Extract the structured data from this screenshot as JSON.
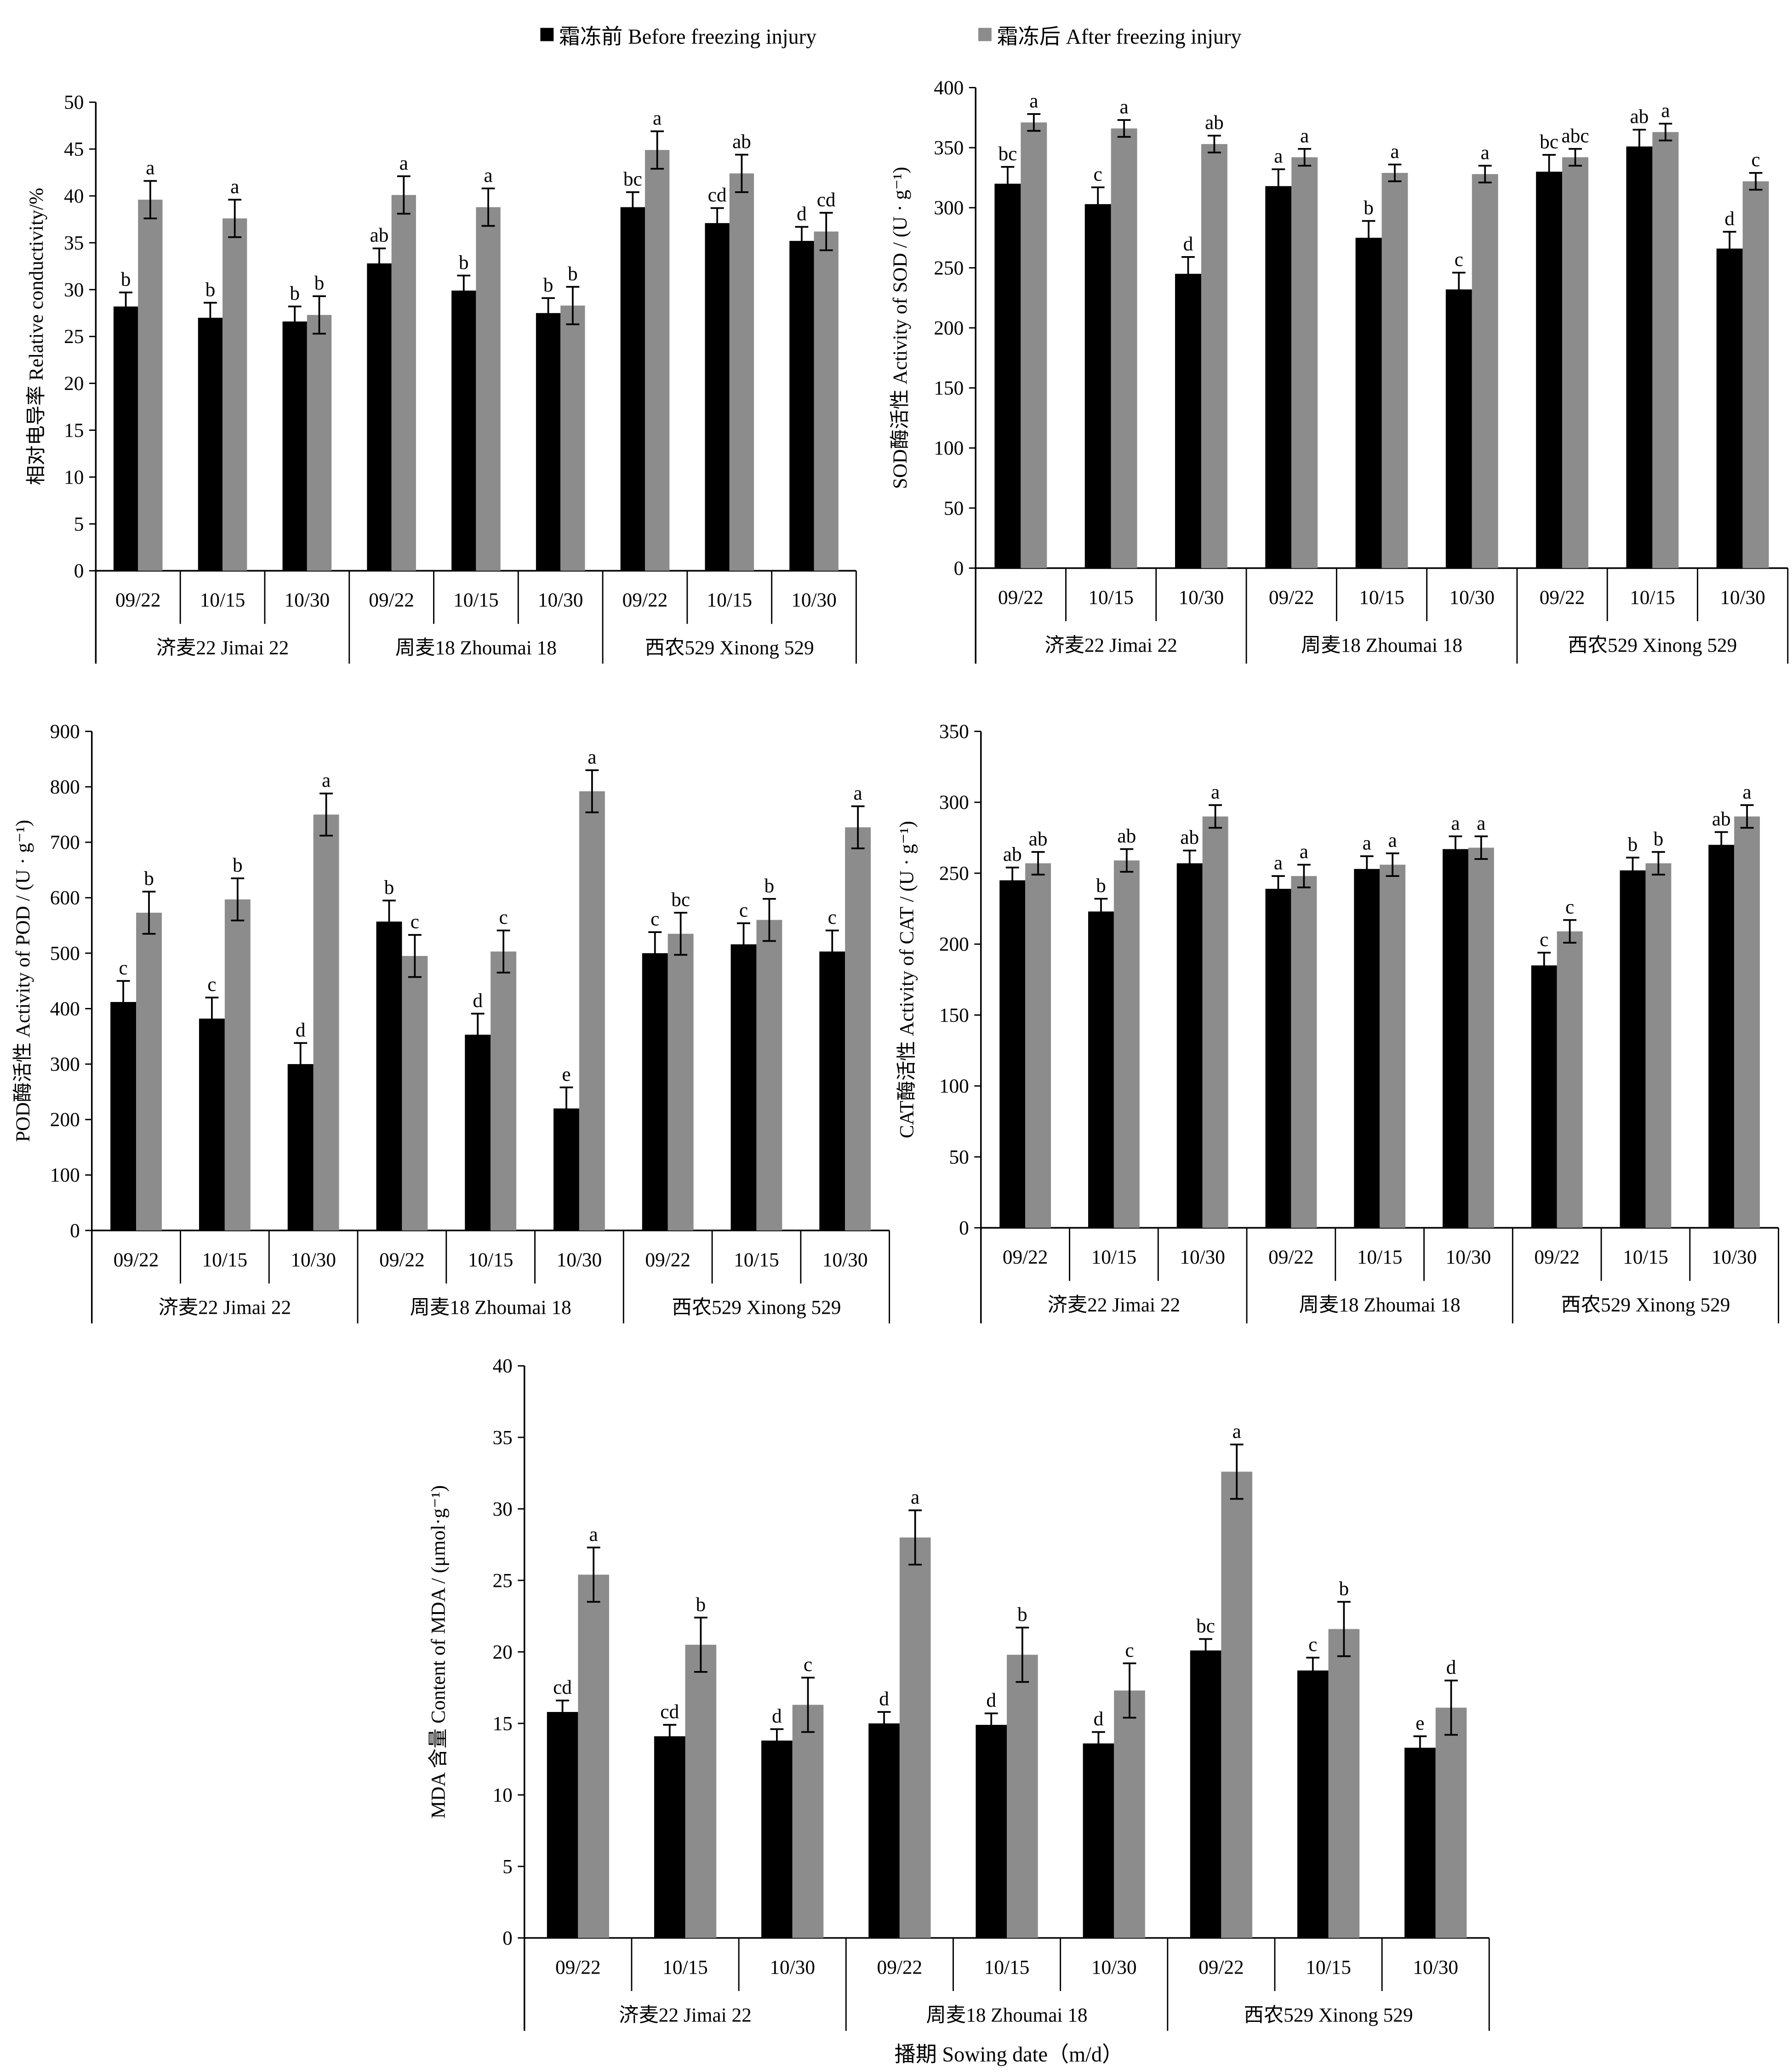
{
  "legend": {
    "before": "霜冻前 Before freezing injury",
    "after": "霜冻后 After freezing injury",
    "before_color": "#000000",
    "after_color": "#8c8c8c"
  },
  "x_title": "播期 Sowing date（m/d）",
  "chart_data": [
    {
      "type": "bar",
      "ylabel": "相对电导率 Relative conductivity/%",
      "ylim": [
        0,
        50
      ],
      "ystep": 5,
      "groups": [
        "济麦22 Jimai 22",
        "周麦18 Zhoumai 18",
        "西农529 Xinong 529"
      ],
      "categories": [
        "09/22",
        "10/15",
        "10/30",
        "09/22",
        "10/15",
        "10/30",
        "09/22",
        "10/15",
        "10/30"
      ],
      "series": [
        {
          "name": "Before freezing injury",
          "values": [
            28.2,
            27.0,
            26.6,
            32.8,
            29.9,
            27.5,
            38.8,
            37.1,
            35.2
          ],
          "errors": [
            1.5,
            1.6,
            1.6,
            1.6,
            1.6,
            1.6,
            1.6,
            1.6,
            1.5
          ],
          "letters": [
            "b",
            "b",
            "b",
            "ab",
            "b",
            "b",
            "bc",
            "cd",
            "d"
          ]
        },
        {
          "name": "After freezing injury",
          "values": [
            39.6,
            37.6,
            27.3,
            40.1,
            38.8,
            28.3,
            44.9,
            42.4,
            36.2
          ],
          "errors": [
            2.0,
            2.0,
            2.0,
            2.0,
            2.0,
            2.0,
            2.0,
            2.0,
            2.0
          ],
          "letters": [
            "a",
            "a",
            "b",
            "a",
            "a",
            "b",
            "a",
            "ab",
            "cd"
          ]
        }
      ]
    },
    {
      "type": "bar",
      "ylabel": "SOD酶活性  Activity of SOD / (U · g⁻¹)",
      "ylim": [
        0,
        400
      ],
      "ystep": 50,
      "groups": [
        "济麦22 Jimai 22",
        "周麦18 Zhoumai 18",
        "西农529 Xinong 529"
      ],
      "categories": [
        "09/22",
        "10/15",
        "10/30",
        "09/22",
        "10/15",
        "10/30",
        "09/22",
        "10/15",
        "10/30"
      ],
      "series": [
        {
          "name": "Before freezing injury",
          "values": [
            320,
            303,
            245,
            318,
            275,
            232,
            330,
            351,
            266
          ],
          "errors": [
            14,
            14,
            14,
            14,
            14,
            14,
            14,
            14,
            14
          ],
          "letters": [
            "bc",
            "c",
            "d",
            "a",
            "b",
            "c",
            "bc",
            "ab",
            "d"
          ]
        },
        {
          "name": "After freezing injury",
          "values": [
            371,
            366,
            353,
            342,
            329,
            328,
            342,
            363,
            322
          ],
          "errors": [
            7,
            7,
            7,
            7,
            7,
            7,
            7,
            7,
            7
          ],
          "letters": [
            "a",
            "a",
            "ab",
            "a",
            "a",
            "a",
            "abc",
            "a",
            "c"
          ]
        }
      ]
    },
    {
      "type": "bar",
      "ylabel": "POD酶活性  Activity of POD / (U · g⁻¹)",
      "ylim": [
        0,
        900
      ],
      "ystep": 100,
      "groups": [
        "济麦22 Jimai 22",
        "周麦18 Zhoumai 18",
        "西农529 Xinong 529"
      ],
      "categories": [
        "09/22",
        "10/15",
        "10/30",
        "09/22",
        "10/15",
        "10/30",
        "09/22",
        "10/15",
        "10/30"
      ],
      "series": [
        {
          "name": "Before freezing injury",
          "values": [
            412,
            382,
            300,
            557,
            353,
            220,
            500,
            516,
            503
          ],
          "errors": [
            38,
            38,
            38,
            38,
            38,
            38,
            38,
            38,
            38
          ],
          "letters": [
            "c",
            "c",
            "d",
            "b",
            "d",
            "e",
            "c",
            "c",
            "c"
          ]
        },
        {
          "name": "After freezing injury",
          "values": [
            573,
            597,
            750,
            495,
            503,
            792,
            535,
            560,
            727
          ],
          "errors": [
            38,
            38,
            38,
            38,
            38,
            38,
            38,
            38,
            38
          ],
          "letters": [
            "b",
            "b",
            "a",
            "c",
            "c",
            "a",
            "bc",
            "b",
            "a"
          ]
        }
      ]
    },
    {
      "type": "bar",
      "ylabel": "CAT酶活性  Activity of CAT / (U · g⁻¹)",
      "ylim": [
        0,
        350
      ],
      "ystep": 50,
      "groups": [
        "济麦22 Jimai 22",
        "周麦18 Zhoumai 18",
        "西农529 Xinong 529"
      ],
      "categories": [
        "09/22",
        "10/15",
        "10/30",
        "09/22",
        "10/15",
        "10/30",
        "09/22",
        "10/15",
        "10/30"
      ],
      "series": [
        {
          "name": "Before freezing injury",
          "values": [
            245,
            223,
            257,
            239,
            253,
            267,
            185,
            252,
            270
          ],
          "errors": [
            9,
            9,
            9,
            9,
            9,
            9,
            9,
            9,
            9
          ],
          "letters": [
            "ab",
            "b",
            "ab",
            "a",
            "a",
            "a",
            "c",
            "b",
            "ab"
          ]
        },
        {
          "name": "After freezing injury",
          "values": [
            257,
            259,
            290,
            248,
            256,
            268,
            209,
            257,
            290
          ],
          "errors": [
            8,
            8,
            8,
            8,
            8,
            8,
            8,
            8,
            8
          ],
          "letters": [
            "ab",
            "ab",
            "a",
            "a",
            "a",
            "a",
            "c",
            "b",
            "a"
          ]
        }
      ]
    },
    {
      "type": "bar",
      "ylabel": "MDA 含量  Content of MDA / (μmol·g⁻¹)",
      "ylim": [
        0,
        40
      ],
      "ystep": 5,
      "groups": [
        "济麦22 Jimai 22",
        "周麦18 Zhoumai 18",
        "西农529 Xinong 529"
      ],
      "categories": [
        "09/22",
        "10/15",
        "10/30",
        "09/22",
        "10/15",
        "10/30",
        "09/22",
        "10/15",
        "10/30"
      ],
      "series": [
        {
          "name": "Before freezing injury",
          "values": [
            15.8,
            14.1,
            13.8,
            15.0,
            14.9,
            13.6,
            20.1,
            18.7,
            13.3
          ],
          "errors": [
            0.8,
            0.8,
            0.8,
            0.8,
            0.8,
            0.8,
            0.8,
            0.9,
            0.8
          ],
          "letters": [
            "cd",
            "cd",
            "d",
            "d",
            "d",
            "d",
            "bc",
            "c",
            "e"
          ]
        },
        {
          "name": "After freezing injury",
          "values": [
            25.4,
            20.5,
            16.3,
            28.0,
            19.8,
            17.3,
            32.6,
            21.6,
            16.1
          ],
          "errors": [
            1.9,
            1.9,
            1.9,
            1.9,
            1.9,
            1.9,
            1.9,
            1.9,
            1.9
          ],
          "letters": [
            "a",
            "b",
            "c",
            "a",
            "b",
            "c",
            "a",
            "b",
            "d"
          ]
        }
      ]
    }
  ]
}
